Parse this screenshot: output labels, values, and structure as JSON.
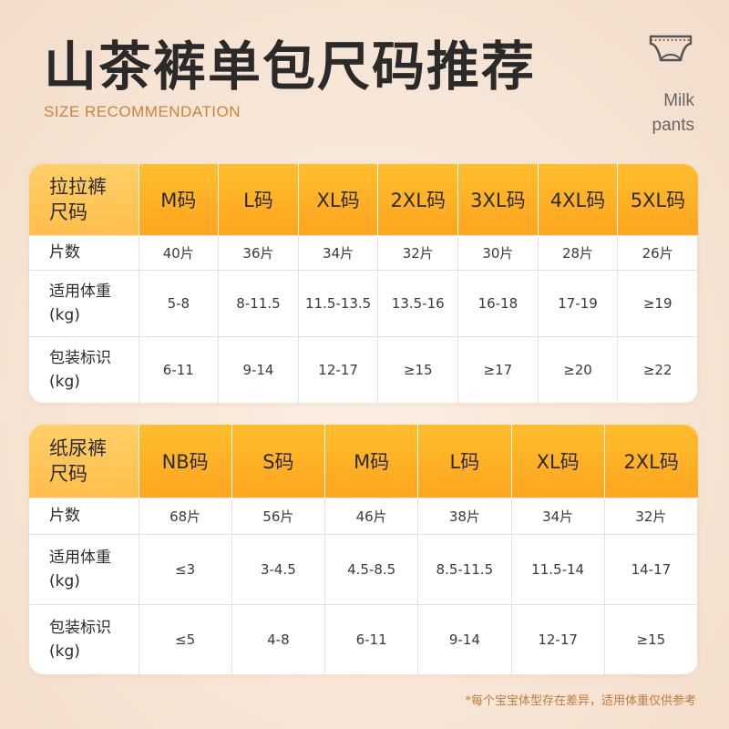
{
  "header": {
    "title": "山茶裤单包尺码推荐",
    "subtitle": "SIZE RECOMMENDATION",
    "icon_name": "diaper-icon",
    "icon_label_line1": "Milk",
    "icon_label_line2": "pants"
  },
  "table1": {
    "corner_line1": "拉拉裤",
    "corner_line2": "尺码",
    "sizes": [
      "M码",
      "L码",
      "XL码",
      "2XL码",
      "3XL码",
      "4XL码",
      "5XL码"
    ],
    "rows": [
      {
        "label1": "片数",
        "label2": "",
        "values": [
          "40片",
          "36片",
          "34片",
          "32片",
          "30片",
          "28片",
          "26片"
        ]
      },
      {
        "label1": "适用体重",
        "label2": "(kg)",
        "values": [
          "5-8",
          "8-11.5",
          "11.5-13.5",
          "13.5-16",
          "16-18",
          "17-19",
          "≥19"
        ]
      },
      {
        "label1": "包装标识",
        "label2": "(kg)",
        "values": [
          "6-11",
          "9-14",
          "12-17",
          "≥15",
          "≥17",
          "≥20",
          "≥22"
        ]
      }
    ]
  },
  "table2": {
    "corner_line1": "纸尿裤",
    "corner_line2": "尺码",
    "sizes": [
      "NB码",
      "S码",
      "M码",
      "L码",
      "XL码",
      "2XL码"
    ],
    "rows": [
      {
        "label1": "片数",
        "label2": "",
        "values": [
          "68片",
          "56片",
          "46片",
          "38片",
          "34片",
          "32片"
        ]
      },
      {
        "label1": "适用体重",
        "label2": "(kg)",
        "values": [
          "≤3",
          "3-4.5",
          "4.5-8.5",
          "8.5-11.5",
          "11.5-14",
          "14-17"
        ]
      },
      {
        "label1": "包装标识",
        "label2": "(kg)",
        "values": [
          "≤5",
          "4-8",
          "6-11",
          "9-14",
          "12-17",
          "≥15"
        ]
      }
    ]
  },
  "footnote": "*每个宝宝体型存在差异，适用体重仅供参考",
  "colors": {
    "accent": "#ffa51f",
    "accent_light": "#ffcf6a",
    "subtitle": "#c9853a",
    "title": "#2a2a2a"
  }
}
